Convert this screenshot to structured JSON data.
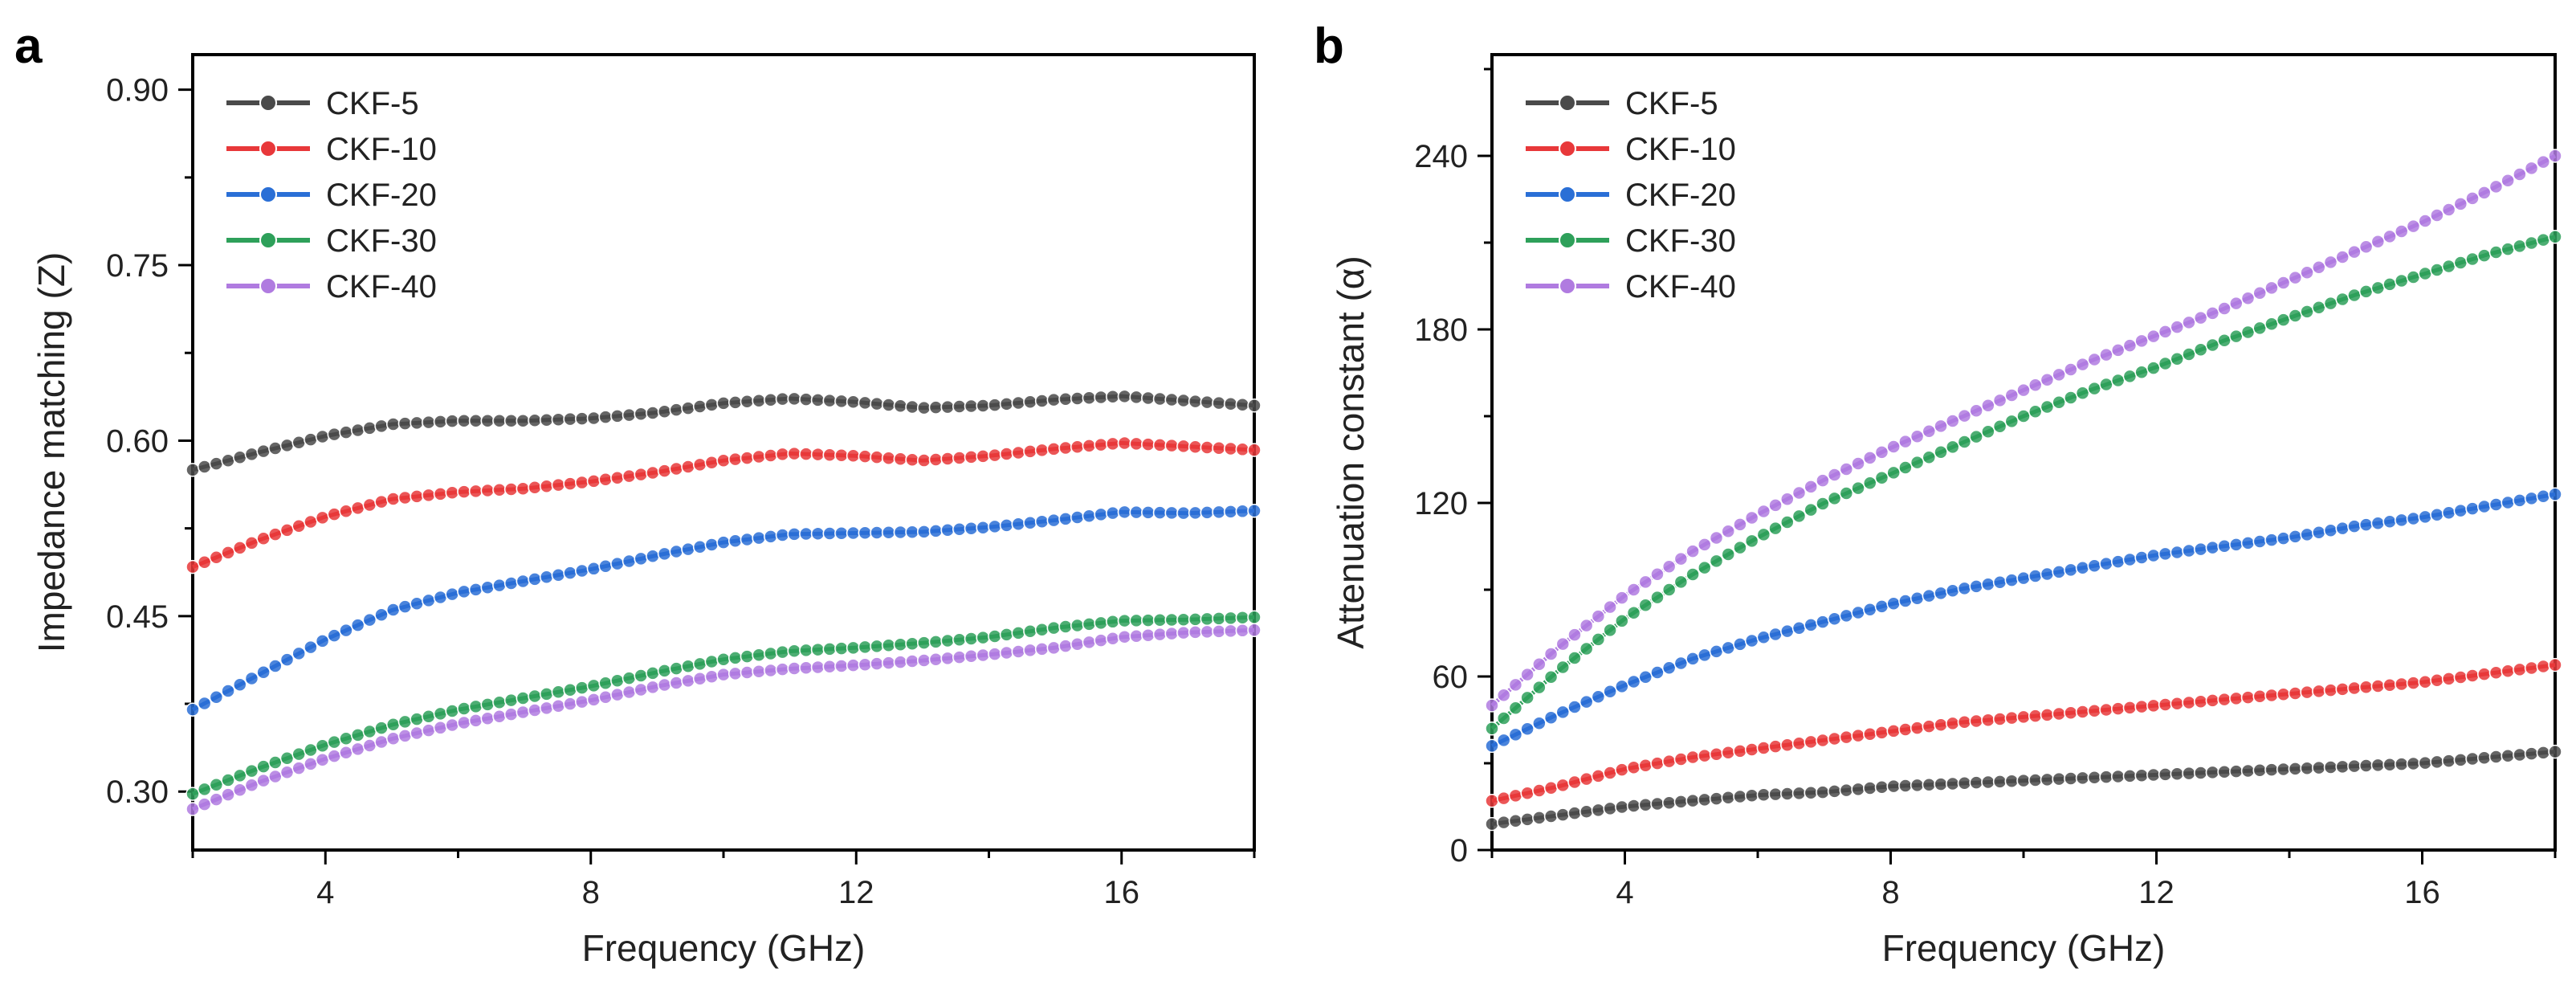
{
  "chart_data": [
    {
      "type": "line",
      "panel_label": "a",
      "xlabel": "Frequency (GHz)",
      "ylabel": "Impedance matching (Z)",
      "xlim": [
        2,
        18
      ],
      "ylim": [
        0.25,
        0.93
      ],
      "xticks": [
        4,
        8,
        12,
        16
      ],
      "yticks": [
        0.3,
        0.45,
        0.6,
        0.75,
        0.9
      ],
      "ytick_labels": [
        "0.30",
        "0.45",
        "0.60",
        "0.75",
        "0.90"
      ],
      "legend_position": "top-left",
      "x": [
        2,
        3,
        4,
        5,
        6,
        7,
        8,
        9,
        10,
        11,
        12,
        13,
        14,
        15,
        16,
        17,
        18
      ],
      "series": [
        {
          "name": "CKF-5",
          "color": "#4a4a4a",
          "values": [
            0.575,
            0.59,
            0.604,
            0.614,
            0.617,
            0.617,
            0.619,
            0.624,
            0.632,
            0.636,
            0.633,
            0.628,
            0.63,
            0.635,
            0.638,
            0.634,
            0.63
          ]
        },
        {
          "name": "CKF-10",
          "color": "#e8383a",
          "values": [
            0.492,
            0.515,
            0.535,
            0.55,
            0.556,
            0.559,
            0.565,
            0.573,
            0.583,
            0.589,
            0.587,
            0.583,
            0.587,
            0.593,
            0.598,
            0.595,
            0.592
          ]
        },
        {
          "name": "CKF-20",
          "color": "#2a6fd6",
          "values": [
            0.37,
            0.4,
            0.43,
            0.455,
            0.47,
            0.48,
            0.49,
            0.502,
            0.513,
            0.52,
            0.521,
            0.522,
            0.526,
            0.532,
            0.539,
            0.538,
            0.54
          ]
        },
        {
          "name": "CKF-30",
          "color": "#2ea05a",
          "values": [
            0.298,
            0.32,
            0.34,
            0.357,
            0.37,
            0.38,
            0.39,
            0.402,
            0.413,
            0.42,
            0.423,
            0.427,
            0.432,
            0.44,
            0.446,
            0.447,
            0.449
          ]
        },
        {
          "name": "CKF-40",
          "color": "#b07be0",
          "values": [
            0.285,
            0.308,
            0.328,
            0.345,
            0.358,
            0.368,
            0.378,
            0.39,
            0.4,
            0.405,
            0.408,
            0.412,
            0.417,
            0.423,
            0.432,
            0.436,
            0.438
          ]
        }
      ]
    },
    {
      "type": "line",
      "panel_label": "b",
      "xlabel": "Frequency (GHz)",
      "ylabel": "Attenuation constant (α)",
      "xlim": [
        2,
        18
      ],
      "ylim": [
        0,
        275
      ],
      "xticks": [
        4,
        8,
        12,
        16
      ],
      "yticks": [
        0,
        60,
        120,
        180,
        240
      ],
      "ytick_labels": [
        "0",
        "60",
        "120",
        "180",
        "240"
      ],
      "legend_position": "top-left",
      "x": [
        2,
        3,
        4,
        5,
        6,
        7,
        8,
        9,
        10,
        11,
        12,
        13,
        14,
        15,
        16,
        17,
        18
      ],
      "series": [
        {
          "name": "CKF-5",
          "color": "#4a4a4a",
          "values": [
            9,
            12,
            15,
            17,
            19,
            20,
            22,
            23,
            24,
            25,
            26,
            27,
            28,
            29,
            30,
            32,
            34
          ]
        },
        {
          "name": "CKF-10",
          "color": "#e8383a",
          "values": [
            17,
            22,
            28,
            32,
            35,
            38,
            41,
            44,
            46,
            48,
            50,
            52,
            54,
            56,
            58,
            61,
            64
          ]
        },
        {
          "name": "CKF-20",
          "color": "#2a6fd6",
          "values": [
            36,
            47,
            57,
            66,
            73,
            79,
            85,
            90,
            94,
            98,
            102,
            105,
            108,
            112,
            115,
            119,
            123
          ]
        },
        {
          "name": "CKF-30",
          "color": "#2ea05a",
          "values": [
            42,
            62,
            80,
            95,
            108,
            120,
            130,
            140,
            150,
            159,
            167,
            176,
            184,
            192,
            199,
            206,
            212
          ]
        },
        {
          "name": "CKF-40",
          "color": "#b07be0",
          "values": [
            50,
            70,
            88,
            103,
            116,
            128,
            139,
            149,
            159,
            169,
            178,
            187,
            197,
            207,
            217,
            228,
            240
          ]
        }
      ]
    }
  ]
}
